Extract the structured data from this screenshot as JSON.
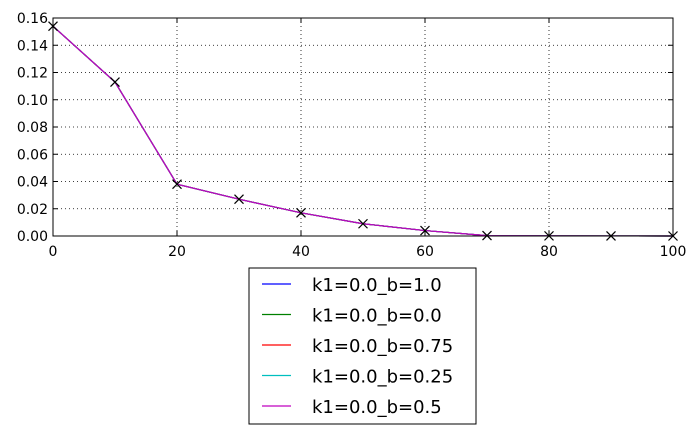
{
  "chart_data": {
    "type": "line",
    "title": "",
    "xlabel": "",
    "ylabel": "",
    "xlim": [
      0,
      100
    ],
    "ylim": [
      0.0,
      0.16
    ],
    "x_ticks": [
      "0",
      "20",
      "40",
      "60",
      "80",
      "100"
    ],
    "y_ticks": [
      "0.00",
      "0.02",
      "0.04",
      "0.06",
      "0.08",
      "0.10",
      "0.12",
      "0.14",
      "0.16"
    ],
    "grid": true,
    "grid_style": "dotted",
    "legend_position": "below",
    "x": [
      0,
      10,
      20,
      30,
      40,
      50,
      60,
      70,
      80,
      90,
      100
    ],
    "series": [
      {
        "name": "k1=0.0_b=1.0",
        "color": "#0000ff",
        "values": [
          0.154,
          0.113,
          0.038,
          0.027,
          0.017,
          0.009,
          0.004,
          0.0003,
          0.0001,
          5e-05,
          0.0
        ]
      },
      {
        "name": "k1=0.0_b=0.0",
        "color": "#008000",
        "values": [
          0.154,
          0.113,
          0.038,
          0.027,
          0.017,
          0.009,
          0.004,
          0.0003,
          0.0001,
          5e-05,
          0.0
        ]
      },
      {
        "name": "k1=0.0_b=0.75",
        "color": "#ff0000",
        "values": [
          0.154,
          0.113,
          0.038,
          0.027,
          0.017,
          0.009,
          0.004,
          0.0003,
          0.0001,
          5e-05,
          0.0
        ]
      },
      {
        "name": "k1=0.0_b=0.25",
        "color": "#00bfbf",
        "values": [
          0.154,
          0.113,
          0.038,
          0.027,
          0.017,
          0.009,
          0.004,
          0.0003,
          0.0001,
          5e-05,
          0.0
        ]
      },
      {
        "name": "k1=0.0_b=0.5",
        "color": "#bf00bf",
        "values": [
          0.154,
          0.113,
          0.038,
          0.027,
          0.017,
          0.009,
          0.004,
          0.0003,
          0.0001,
          5e-05,
          0.0
        ]
      }
    ],
    "markers": {
      "symbol": "x",
      "color": "#000000",
      "x": [
        0,
        10,
        20,
        30,
        40,
        50,
        60,
        70,
        80,
        90,
        100
      ],
      "values": [
        0.154,
        0.113,
        0.038,
        0.027,
        0.017,
        0.009,
        0.004,
        0.0003,
        0.0001,
        5e-05,
        0.0
      ]
    }
  }
}
